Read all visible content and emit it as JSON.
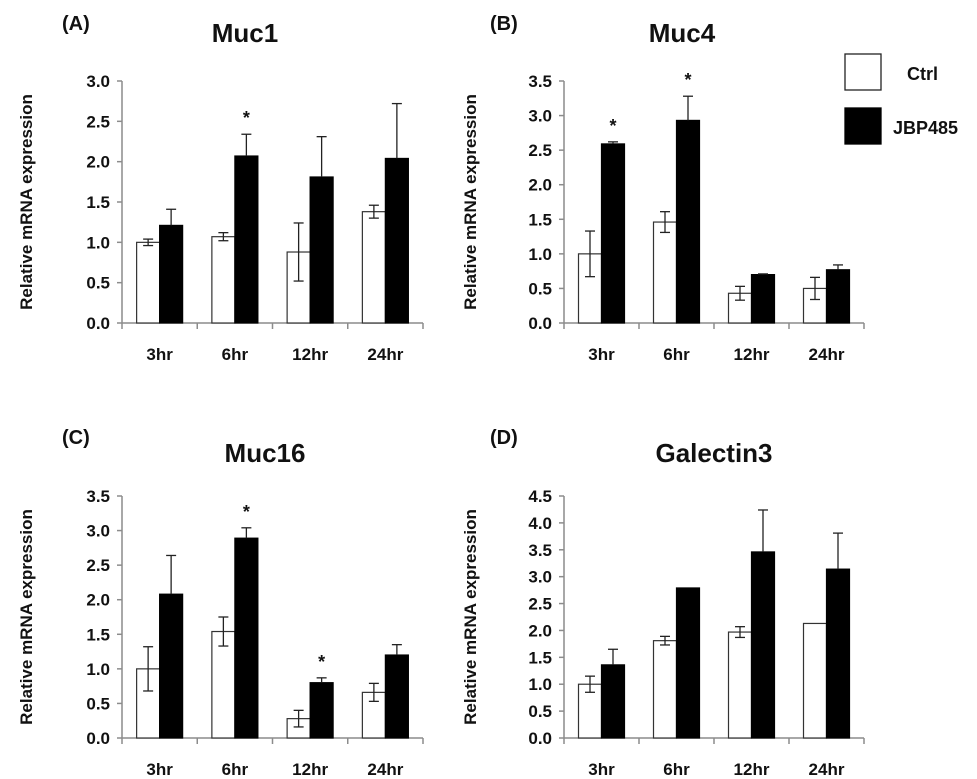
{
  "legend": [
    {
      "name": "Ctrl",
      "fill": "#ffffff"
    },
    {
      "name": "JBP485",
      "fill": "#000000"
    }
  ],
  "chart_data": [
    {
      "type": "bar",
      "panel": "(A)",
      "title": "Muc1",
      "ylabel": "Relative mRNA expression",
      "categories": [
        "3hr",
        "6hr",
        "12hr",
        "24hr"
      ],
      "ylim": [
        0,
        3.0
      ],
      "yticks": [
        "0.0",
        "0.5",
        "1.0",
        "1.5",
        "2.0",
        "2.5",
        "3.0"
      ],
      "series": [
        {
          "name": "Ctrl",
          "values": [
            1.0,
            1.07,
            0.88,
            1.38
          ],
          "errors": [
            0.04,
            0.05,
            0.36,
            0.08
          ]
        },
        {
          "name": "JBP485",
          "values": [
            1.21,
            2.07,
            1.81,
            2.04
          ],
          "errors": [
            0.2,
            0.27,
            0.5,
            0.68
          ]
        }
      ],
      "significance": [
        "",
        "*",
        "",
        ""
      ]
    },
    {
      "type": "bar",
      "panel": "(B)",
      "title": "Muc4",
      "ylabel": "Relative mRNA expression",
      "categories": [
        "3hr",
        "6hr",
        "12hr",
        "24hr"
      ],
      "ylim": [
        0,
        3.5
      ],
      "yticks": [
        "0.0",
        "0.5",
        "1.0",
        "1.5",
        "2.0",
        "2.5",
        "3.0",
        "3.5"
      ],
      "series": [
        {
          "name": "Ctrl",
          "values": [
            1.0,
            1.46,
            0.43,
            0.5
          ],
          "errors": [
            0.33,
            0.15,
            0.1,
            0.16
          ]
        },
        {
          "name": "JBP485",
          "values": [
            2.59,
            2.93,
            0.7,
            0.77
          ],
          "errors": [
            0.03,
            0.35,
            0.01,
            0.07
          ]
        }
      ],
      "significance": [
        "*",
        "*",
        "",
        ""
      ]
    },
    {
      "type": "bar",
      "panel": "(C)",
      "title": "Muc16",
      "ylabel": "Relative mRNA expression",
      "categories": [
        "3hr",
        "6hr",
        "12hr",
        "24hr"
      ],
      "ylim": [
        0,
        3.5
      ],
      "yticks": [
        "0.0",
        "0.5",
        "1.0",
        "1.5",
        "2.0",
        "2.5",
        "3.0",
        "3.5"
      ],
      "series": [
        {
          "name": "Ctrl",
          "values": [
            1.0,
            1.54,
            0.28,
            0.66
          ],
          "errors": [
            0.32,
            0.21,
            0.12,
            0.13
          ]
        },
        {
          "name": "JBP485",
          "values": [
            2.08,
            2.89,
            0.8,
            1.2
          ],
          "errors": [
            0.56,
            0.15,
            0.07,
            0.15
          ]
        }
      ],
      "significance": [
        "",
        "*",
        "*",
        ""
      ]
    },
    {
      "type": "bar",
      "panel": "(D)",
      "title": "Galectin3",
      "ylabel": "Relative mRNA expression",
      "categories": [
        "3hr",
        "6hr",
        "12hr",
        "24hr"
      ],
      "ylim": [
        0,
        4.5
      ],
      "yticks": [
        "0.0",
        "0.5",
        "1.0",
        "1.5",
        "2.0",
        "2.5",
        "3.0",
        "3.5",
        "4.0",
        "4.5"
      ],
      "series": [
        {
          "name": "Ctrl",
          "values": [
            1.0,
            1.81,
            1.97,
            2.13
          ],
          "errors": [
            0.15,
            0.08,
            0.1,
            0.0
          ]
        },
        {
          "name": "JBP485",
          "values": [
            1.36,
            2.79,
            3.46,
            3.14
          ],
          "errors": [
            0.29,
            0.0,
            0.78,
            0.67
          ]
        }
      ],
      "significance": [
        "",
        "",
        "",
        ""
      ]
    }
  ]
}
